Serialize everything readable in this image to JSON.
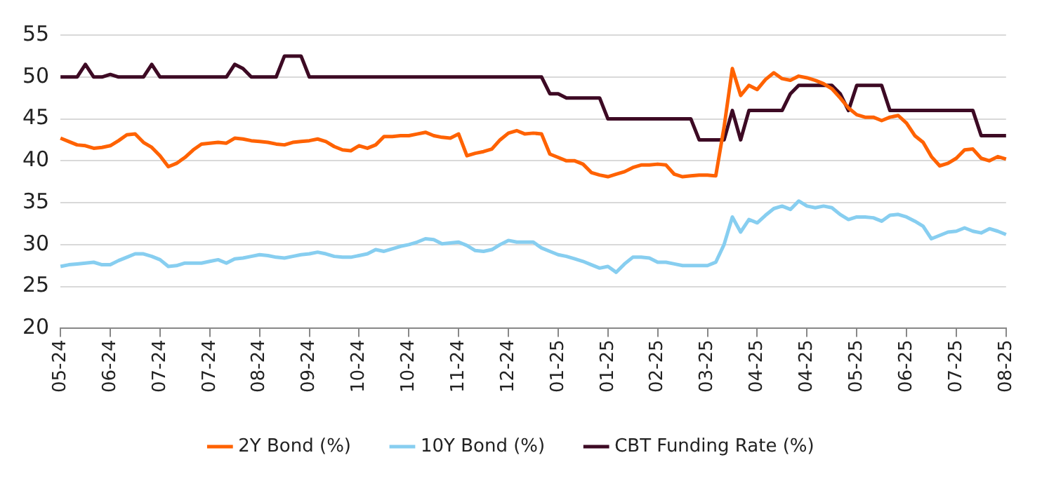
{
  "chart_data": {
    "type": "line",
    "categories": [
      "05-24",
      null,
      null,
      null,
      null,
      null,
      "06-24",
      null,
      null,
      null,
      null,
      null,
      "07-24",
      null,
      null,
      null,
      null,
      null,
      "07-24",
      null,
      null,
      null,
      null,
      null,
      "08-24",
      null,
      null,
      null,
      null,
      null,
      "09-24",
      null,
      null,
      null,
      null,
      null,
      "10-24",
      null,
      null,
      null,
      null,
      null,
      "10-24",
      null,
      null,
      null,
      null,
      null,
      "11-24",
      null,
      null,
      null,
      null,
      null,
      "12-24",
      null,
      null,
      null,
      null,
      null,
      "01-25",
      null,
      null,
      null,
      null,
      null,
      "01-25",
      null,
      null,
      null,
      null,
      null,
      "02-25",
      null,
      null,
      null,
      null,
      null,
      "03-25",
      null,
      null,
      null,
      null,
      null,
      "04-25",
      null,
      null,
      null,
      null,
      null,
      "04-25",
      null,
      null,
      null,
      null,
      null,
      "05-25",
      null,
      null,
      null,
      null,
      null,
      "06-25",
      null,
      null,
      null,
      null,
      null,
      "07-25",
      null,
      null,
      null,
      null,
      null,
      "08-25"
    ],
    "series": [
      {
        "name": "2Y Bond (%)",
        "color": "#ff6200",
        "values": [
          42.7,
          42.3,
          41.9,
          41.8,
          41.5,
          41.6,
          41.8,
          42.4,
          43.1,
          43.2,
          42.2,
          41.6,
          40.6,
          39.3,
          39.7,
          40.4,
          41.3,
          42.0,
          42.1,
          42.2,
          42.1,
          42.7,
          42.6,
          42.4,
          42.3,
          42.2,
          42.0,
          41.9,
          42.2,
          42.3,
          42.4,
          42.6,
          42.3,
          41.7,
          41.3,
          41.2,
          41.8,
          41.5,
          41.9,
          42.9,
          42.9,
          43.0,
          43.0,
          43.2,
          43.4,
          43.0,
          42.8,
          42.7,
          43.2,
          40.6,
          40.9,
          41.1,
          41.4,
          42.5,
          43.3,
          43.6,
          43.2,
          43.3,
          43.2,
          40.8,
          40.4,
          40.0,
          40.0,
          39.6,
          38.6,
          38.3,
          38.1,
          38.4,
          38.7,
          39.2,
          39.5,
          39.5,
          39.6,
          39.5,
          38.4,
          38.1,
          38.2,
          38.3,
          38.3,
          38.2,
          44.0,
          51.0,
          47.8,
          49.0,
          48.5,
          49.7,
          50.5,
          49.8,
          49.6,
          50.1,
          49.9,
          49.6,
          49.2,
          48.6,
          47.5,
          46.3,
          45.5,
          45.2,
          45.2,
          44.8,
          45.2,
          45.4,
          44.5,
          43.0,
          42.2,
          40.5,
          39.4,
          39.7,
          40.3,
          41.3,
          41.4,
          40.3,
          40.0,
          40.5,
          40.2
        ]
      },
      {
        "name": "10Y Bond (%)",
        "color": "#87cef0",
        "values": [
          27.4,
          27.6,
          27.7,
          27.8,
          27.9,
          27.6,
          27.6,
          28.1,
          28.5,
          28.9,
          28.9,
          28.6,
          28.2,
          27.4,
          27.5,
          27.8,
          27.8,
          27.8,
          28.0,
          28.2,
          27.8,
          28.3,
          28.4,
          28.6,
          28.8,
          28.7,
          28.5,
          28.4,
          28.6,
          28.8,
          28.9,
          29.1,
          28.9,
          28.6,
          28.5,
          28.5,
          28.7,
          28.9,
          29.4,
          29.2,
          29.5,
          29.8,
          30.0,
          30.3,
          30.7,
          30.6,
          30.1,
          30.2,
          30.3,
          29.9,
          29.3,
          29.2,
          29.4,
          30.0,
          30.5,
          30.3,
          30.3,
          30.3,
          29.6,
          29.2,
          28.8,
          28.6,
          28.3,
          28.0,
          27.6,
          27.2,
          27.4,
          26.7,
          27.7,
          28.5,
          28.5,
          28.4,
          27.9,
          27.9,
          27.7,
          27.5,
          27.5,
          27.5,
          27.5,
          27.9,
          30.0,
          33.3,
          31.5,
          33.0,
          32.6,
          33.5,
          34.3,
          34.6,
          34.2,
          35.2,
          34.6,
          34.4,
          34.6,
          34.4,
          33.6,
          33.0,
          33.3,
          33.3,
          33.2,
          32.8,
          33.5,
          33.6,
          33.3,
          32.8,
          32.2,
          30.7,
          31.1,
          31.5,
          31.6,
          32.0,
          31.6,
          31.4,
          31.9,
          31.6,
          31.2
        ]
      },
      {
        "name": "CBT Funding Rate (%)",
        "color": "#3d0a24",
        "values": [
          50,
          50,
          50,
          51.5,
          50,
          50,
          50.3,
          50,
          50,
          50,
          50,
          51.5,
          50,
          50,
          50,
          50,
          50,
          50,
          50,
          50,
          50,
          51.5,
          51,
          50,
          50,
          50,
          50,
          52.5,
          52.5,
          52.5,
          50,
          50,
          50,
          50,
          50,
          50,
          50,
          50,
          50,
          50,
          50,
          50,
          50,
          50,
          50,
          50,
          50,
          50,
          50,
          50,
          50,
          50,
          50,
          50,
          50,
          50,
          50,
          50,
          50,
          48,
          48,
          47.5,
          47.5,
          47.5,
          47.5,
          47.5,
          45,
          45,
          45,
          45,
          45,
          45,
          45,
          45,
          45,
          45,
          45,
          42.5,
          42.5,
          42.5,
          42.5,
          46,
          42.5,
          46,
          46,
          46,
          46,
          46,
          48,
          49,
          49,
          49,
          49,
          49,
          48,
          46,
          49,
          49,
          49,
          49,
          46,
          46,
          46,
          46,
          46,
          46,
          46,
          46,
          46,
          46,
          46,
          43,
          43,
          43,
          43
        ]
      }
    ],
    "ylim": [
      20,
      55
    ],
    "yticks": [
      20,
      25,
      30,
      35,
      40,
      45,
      50,
      55
    ],
    "grid": "y",
    "legend": "bottom"
  }
}
